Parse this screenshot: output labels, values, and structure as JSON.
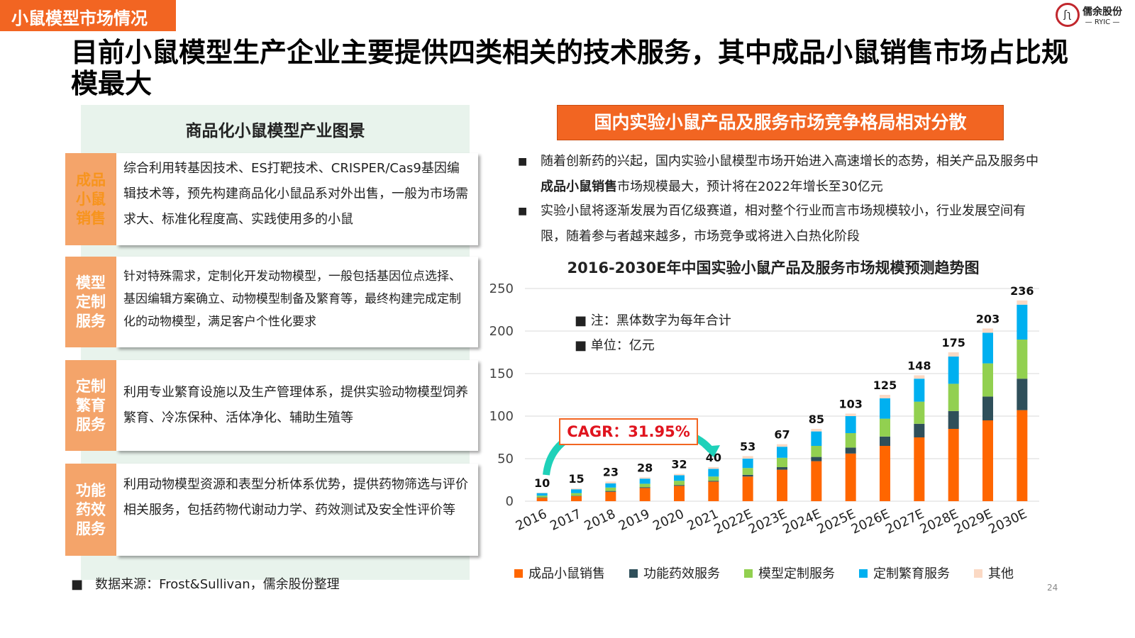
{
  "header": {
    "tag": "小鼠模型市场情况",
    "title": "目前小鼠模型生产企业主要提供四类相关的技术服务，其中成品小鼠销售市场占比规模最大",
    "logo_text": "儒余股份",
    "logo_sub": "— RYIC —"
  },
  "left": {
    "title": "商品化小鼠模型产业图景",
    "rows": [
      {
        "label": "成品小鼠销售",
        "text": "综合利用转基因技术、ES打靶技术、CRISPER/Cas9基因编辑技术等，预先构建商品化小鼠品系对外出售，一般为市场需求大、标准化程度高、实践使用多的小鼠"
      },
      {
        "label": "模型定制服务",
        "text": "针对特殊需求，定制化开发动物模型，一般包括基因位点选择、基因编辑方案确立、动物模型制备及繁育等，最终构建完成定制化的动物模型，满足客户个性化要求"
      },
      {
        "label": "定制繁育服务",
        "text": "利用专业繁育设施以及生产管理体系，提供实验动物模型饲养繁育、冷冻保种、活体净化、辅助生殖等"
      },
      {
        "label": "功能药效服务",
        "text": "利用动物模型资源和表型分析体系优势，提供药物筛选与评价相关服务，包括药物代谢动力学、药效测试及安全性评价等"
      }
    ],
    "source": "数据来源：Frost&Sullivan，儒余股份整理"
  },
  "right": {
    "header": "国内实验小鼠产品及服务市场竞争格局相对分散",
    "bullet1_a": "随着创新药的兴起，国内实验小鼠模型市场开始进入高速增长的态势，相关产品及服务中",
    "bullet1_bold": "成品小鼠销售",
    "bullet1_b": "市场规模最大，预计将在2022年增长至30亿元",
    "bullet2": "实验小鼠将逐渐发展为百亿级赛道，相对整个行业而言市场规模较小，行业发展空间有限，随着参与者越来越多，市场竞争或将进入白热化阶段",
    "note1": "注：黑体数字为每年合计",
    "note2": "单位：亿元",
    "cagr": "CAGR：31.95%"
  },
  "page_number": "24",
  "chart_data": {
    "type": "bar",
    "stacked": true,
    "title": "2016-2030E年中国实验小鼠产品及服务市场规模预测趋势图",
    "ylim": [
      0,
      250
    ],
    "yticks": [
      0,
      50,
      100,
      150,
      200,
      250
    ],
    "grid": true,
    "legend_position": "bottom",
    "categories": [
      "2016",
      "2017",
      "2018",
      "2019",
      "2020",
      "2021",
      "2022E",
      "2023E",
      "2024E",
      "2025E",
      "2026E",
      "2027E",
      "2028E",
      "2029E",
      "2030E"
    ],
    "totals": [
      10,
      15,
      23,
      28,
      32,
      40,
      53,
      67,
      85,
      103,
      125,
      148,
      175,
      203,
      236
    ],
    "series": [
      {
        "name": "成品小鼠销售",
        "color": "#ff6600",
        "values": [
          4,
          6,
          11,
          15.5,
          18,
          23,
          29,
          37,
          47,
          56,
          65,
          75,
          85,
          95,
          107
        ]
      },
      {
        "name": "功能药效服务",
        "color": "#2f4f5a",
        "values": [
          0.5,
          0.5,
          1,
          1,
          1,
          1,
          2,
          3,
          5,
          7,
          11,
          16,
          21,
          28,
          37
        ]
      },
      {
        "name": "模型定制服务",
        "color": "#92d050",
        "values": [
          2,
          3,
          4,
          4,
          5,
          5,
          8,
          11,
          13,
          17,
          21,
          26,
          32,
          39,
          46
        ]
      },
      {
        "name": "定制繁育服务",
        "color": "#00b0f0",
        "values": [
          3,
          4.5,
          5,
          6,
          6.5,
          9,
          11,
          13,
          17,
          20,
          24,
          27,
          32,
          36,
          41
        ]
      },
      {
        "name": "其他",
        "color": "#fbd9c4",
        "values": [
          0.5,
          1,
          2,
          1.5,
          1.5,
          2,
          3,
          3,
          3,
          3,
          4,
          4,
          5,
          5,
          5
        ]
      }
    ]
  }
}
